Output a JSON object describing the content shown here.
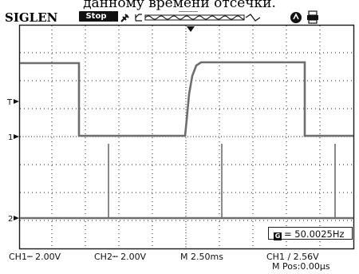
{
  "caption": "данному времени отсечки.",
  "header": {
    "brand": "SIGLEN",
    "run_state": "Stop"
  },
  "status": {
    "ch1": "CH1┉ 2.00V",
    "ch2": "CH2┉ 2.00V",
    "timebase": "M 2.50ms",
    "trigger": "CH1 ∕ 2.56V",
    "m_pos": "M Pos:0.00μs"
  },
  "measurement": {
    "frequency": "= 50.0025Hz"
  },
  "markers": {
    "ch1_level": "1",
    "ch1_trigger": "T",
    "ch2_level": "2"
  },
  "colors": {
    "trace": "#6e6e6e",
    "grid": "#1a1a1a",
    "background": "#ffffff"
  },
  "icons": [
    "usb-icon",
    "wave-overview-icon",
    "trigger-mode-icon",
    "printer-icon"
  ]
}
